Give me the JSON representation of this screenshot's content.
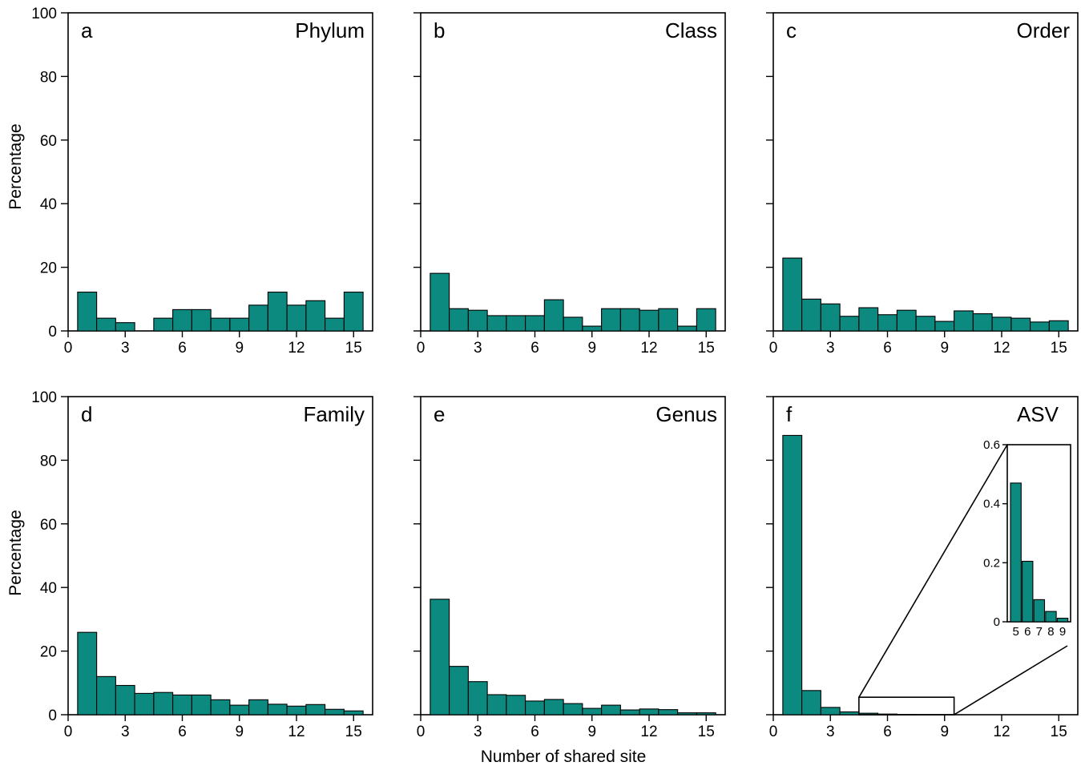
{
  "figure": {
    "ylabel": "Percentage",
    "xlabel": "Number of shared site"
  },
  "colors": {
    "bar_fill": "#0d8a80",
    "bar_stroke": "#000000"
  },
  "chart_data": [
    {
      "type": "bar",
      "panel": "a",
      "title": "Phylum",
      "x": [
        1,
        2,
        3,
        4,
        5,
        6,
        7,
        8,
        9,
        10,
        11,
        12,
        13,
        14,
        15
      ],
      "values": [
        12.2,
        4.0,
        2.6,
        0,
        4.0,
        6.7,
        6.7,
        4.0,
        4.0,
        8.1,
        12.2,
        8.1,
        9.5,
        4.0,
        12.2
      ],
      "ylim": [
        0,
        100
      ],
      "xlim": [
        0,
        16
      ],
      "yticks": [
        0,
        20,
        40,
        60,
        80,
        100
      ],
      "xticks": [
        0,
        3,
        6,
        9,
        12,
        15
      ]
    },
    {
      "type": "bar",
      "panel": "b",
      "title": "Class",
      "x": [
        1,
        2,
        3,
        4,
        5,
        6,
        7,
        8,
        9,
        10,
        11,
        12,
        13,
        14,
        15
      ],
      "values": [
        18.1,
        7.0,
        6.5,
        4.8,
        4.8,
        4.8,
        9.8,
        4.3,
        1.5,
        7.0,
        7.0,
        6.5,
        7.0,
        1.5,
        7.0
      ],
      "ylim": [
        0,
        100
      ],
      "xlim": [
        0,
        16
      ],
      "yticks": [
        0,
        20,
        40,
        60,
        80,
        100
      ],
      "xticks": [
        0,
        3,
        6,
        9,
        12,
        15
      ]
    },
    {
      "type": "bar",
      "panel": "c",
      "title": "Order",
      "x": [
        1,
        2,
        3,
        4,
        5,
        6,
        7,
        8,
        9,
        10,
        11,
        12,
        13,
        14,
        15
      ],
      "values": [
        22.9,
        10.0,
        8.5,
        4.6,
        7.3,
        5.1,
        6.5,
        4.6,
        3.0,
        6.3,
        5.4,
        4.3,
        4.0,
        2.8,
        3.2
      ],
      "ylim": [
        0,
        100
      ],
      "xlim": [
        0,
        16
      ],
      "yticks": [
        0,
        20,
        40,
        60,
        80,
        100
      ],
      "xticks": [
        0,
        3,
        6,
        9,
        12,
        15
      ]
    },
    {
      "type": "bar",
      "panel": "d",
      "title": "Family",
      "x": [
        1,
        2,
        3,
        4,
        5,
        6,
        7,
        8,
        9,
        10,
        11,
        12,
        13,
        14,
        15
      ],
      "values": [
        25.9,
        12.0,
        9.2,
        6.7,
        7.0,
        6.2,
        6.2,
        4.7,
        3.0,
        4.7,
        3.3,
        2.7,
        3.2,
        1.7,
        1.2
      ],
      "ylim": [
        0,
        100
      ],
      "xlim": [
        0,
        16
      ],
      "yticks": [
        0,
        20,
        40,
        60,
        80,
        100
      ],
      "xticks": [
        0,
        3,
        6,
        9,
        12,
        15
      ]
    },
    {
      "type": "bar",
      "panel": "e",
      "title": "Genus",
      "x": [
        1,
        2,
        3,
        4,
        5,
        6,
        7,
        8,
        9,
        10,
        11,
        12,
        13,
        14,
        15
      ],
      "values": [
        36.3,
        15.2,
        10.4,
        6.3,
        6.1,
        4.3,
        4.8,
        3.5,
        2.0,
        3.0,
        1.5,
        1.8,
        1.6,
        0.6,
        0.6
      ],
      "ylim": [
        0,
        100
      ],
      "xlim": [
        0,
        16
      ],
      "yticks": [
        0,
        20,
        40,
        60,
        80,
        100
      ],
      "xticks": [
        0,
        3,
        6,
        9,
        12,
        15
      ]
    },
    {
      "type": "bar",
      "panel": "f",
      "title": "ASV",
      "x": [
        1,
        2,
        3,
        4,
        5,
        6,
        7,
        8,
        9,
        10,
        11,
        12,
        13,
        14,
        15
      ],
      "values": [
        87.8,
        7.6,
        2.3,
        0.9,
        0.47,
        0.21,
        0.08,
        0.04,
        0.02,
        0.01,
        0.01,
        0.005,
        0.005,
        0.005,
        0.005
      ],
      "ylim": [
        0,
        100
      ],
      "xlim": [
        0,
        16
      ],
      "yticks": [
        0,
        20,
        40,
        60,
        80,
        100
      ],
      "xticks": [
        0,
        3,
        6,
        9,
        12,
        15
      ],
      "zoom_box": {
        "xrange": [
          4.5,
          9.5
        ],
        "yrange": [
          0,
          5.5
        ]
      },
      "inset": {
        "type": "bar",
        "x": [
          5,
          6,
          7,
          8,
          9
        ],
        "values": [
          0.47,
          0.205,
          0.075,
          0.035,
          0.012
        ],
        "ylim": [
          0,
          0.6
        ],
        "yticks": [
          0,
          0.2,
          0.4,
          0.6
        ],
        "ytick_labels": [
          "0",
          "0.2",
          "0.4",
          "0.6"
        ],
        "xticks": [
          5,
          6,
          7,
          8,
          9
        ]
      }
    }
  ]
}
